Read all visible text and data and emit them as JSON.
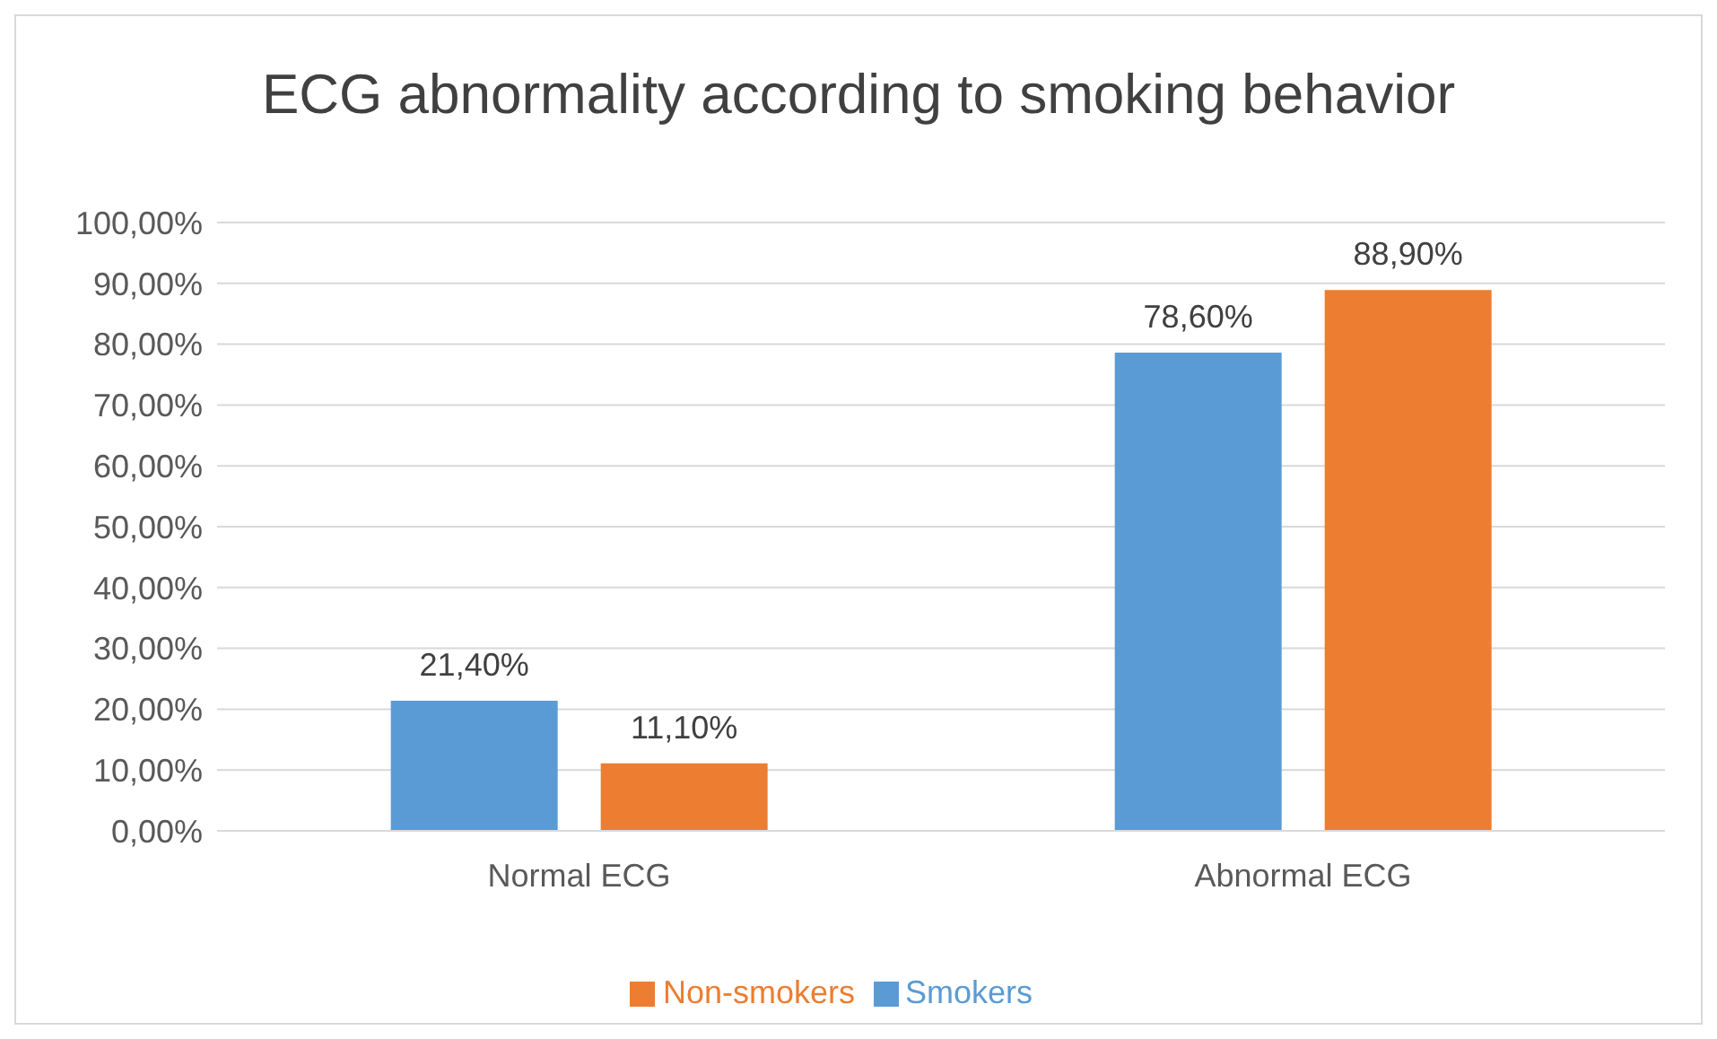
{
  "chart_data": {
    "type": "bar",
    "title": "ECG abnormality according to smoking behavior",
    "categories": [
      "Normal ECG",
      "Abnormal ECG"
    ],
    "series": [
      {
        "name": "Smokers",
        "color": "#5b9bd5",
        "values": [
          21.4,
          78.6
        ],
        "value_labels": [
          "21,40%",
          "78,60%"
        ]
      },
      {
        "name": "Non-smokers",
        "color": "#ed7d31",
        "values": [
          11.1,
          88.9
        ],
        "value_labels": [
          "11,10%",
          "88,90%"
        ]
      }
    ],
    "ylim": [
      0,
      100
    ],
    "yticks": [
      {
        "value": 0,
        "label": "0,00%"
      },
      {
        "value": 10,
        "label": "10,00%"
      },
      {
        "value": 20,
        "label": "20,00%"
      },
      {
        "value": 30,
        "label": "30,00%"
      },
      {
        "value": 40,
        "label": "40,00%"
      },
      {
        "value": 50,
        "label": "50,00%"
      },
      {
        "value": 60,
        "label": "60,00%"
      },
      {
        "value": 70,
        "label": "70,00%"
      },
      {
        "value": 80,
        "label": "80,00%"
      },
      {
        "value": 90,
        "label": "90,00%"
      },
      {
        "value": 100,
        "label": "100,00%"
      }
    ],
    "grid": "y",
    "legend": "bottom"
  }
}
